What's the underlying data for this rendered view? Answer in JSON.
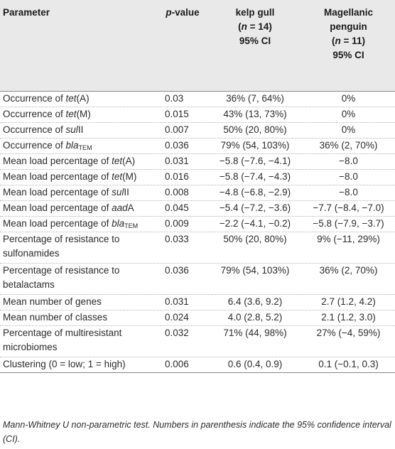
{
  "header": {
    "param": "Parameter",
    "pvalue_p": "p",
    "pvalue_rest": "-value",
    "gull_line1": "kelp gull",
    "gull_line2_open": "(",
    "gull_n": "n",
    "gull_line2_close": " = 14)",
    "gull_line3": "95% CI",
    "peng_line1": "Magellanic",
    "peng_line2": "penguin",
    "peng_line3_open": "(",
    "peng_n": "n",
    "peng_line3_close": " = 11)",
    "peng_line4": "95% CI"
  },
  "rows": [
    {
      "pre": "Occurrence of ",
      "it": "tet",
      "post": "(A)",
      "p": "0.03",
      "gull": "36% (7, 64%)",
      "peng": "0%"
    },
    {
      "pre": "Occurrence of ",
      "it": "tet",
      "post": "(M)",
      "p": "0.015",
      "gull": "43% (13, 73%)",
      "peng": "0%"
    },
    {
      "pre": "Occurrence of ",
      "it": "sul",
      "post": "II",
      "p": "0.007",
      "gull": "50% (20, 80%)",
      "peng": "0%"
    },
    {
      "pre": "Occurrence of ",
      "it": "bla",
      "sub": "TEM",
      "p": "0.036",
      "gull": "79% (54, 103%)",
      "peng": "36% (2, 70%)"
    },
    {
      "pre": "Mean load percentage of ",
      "it": "tet",
      "post": "(A)",
      "p": "0.031",
      "gull": "−5.8 (−7.6, −4.1)",
      "peng": "−8.0"
    },
    {
      "pre": "Mean load percentage of ",
      "it": "tet",
      "post": "(M)",
      "p": "0.016",
      "gull": "−5.8 (−7.4, −4.3)",
      "peng": "−8.0"
    },
    {
      "pre": "Mean load percentage of ",
      "it": "sul",
      "post": "II",
      "p": "0.008",
      "gull": "−4.8 (−6.8, −2.9)",
      "peng": "−8.0"
    },
    {
      "pre": "Mean load percentage of ",
      "it": "aad",
      "post": "A",
      "p": "0.045",
      "gull": "−5.4 (−7.2, −3.6)",
      "peng": "−7.7 (−8.4, −7.0)"
    },
    {
      "pre": "Mean load percentage of ",
      "it": "bla",
      "sub": "TEM",
      "p": "0.009",
      "gull": "−2.2 (−4.1, −0.2)",
      "peng": "−5.8 (−7.9, −3.7)"
    },
    {
      "line1": "Percentage of resistance to",
      "line2": "sulfonamides",
      "p": "0.033",
      "gull": "50% (20, 80%)",
      "peng": "9% (−11, 29%)"
    },
    {
      "line1": "Percentage of resistance to",
      "line2": "betalactams",
      "p": "0.036",
      "gull": "79% (54, 103%)",
      "peng": "36% (2, 70%)"
    },
    {
      "pre": "Mean number of genes",
      "p": "0.031",
      "gull": "6.4 (3.6, 9.2)",
      "peng": "2.7 (1.2, 4.2)"
    },
    {
      "pre": "Mean number of classes",
      "p": "0.024",
      "gull": "4.0 (2.8, 5.2)",
      "peng": "2.1 (1.2, 3.0)"
    },
    {
      "line1": "Percentage of multiresistant",
      "line2": "microbiomes",
      "p": "0.032",
      "gull": "71% (44, 98%)",
      "peng": "27% (−4, 59%)"
    },
    {
      "pre": "Clustering (0 = low; 1 = high)",
      "p": "0.006",
      "gull": "0.6 (0.4, 0.9)",
      "peng": "0.1 (−0.1, 0.3)"
    }
  ],
  "footnote": "Mann-Whitney U non-parametric test. Numbers in parenthesis indicate the 95% confidence interval (CI)."
}
